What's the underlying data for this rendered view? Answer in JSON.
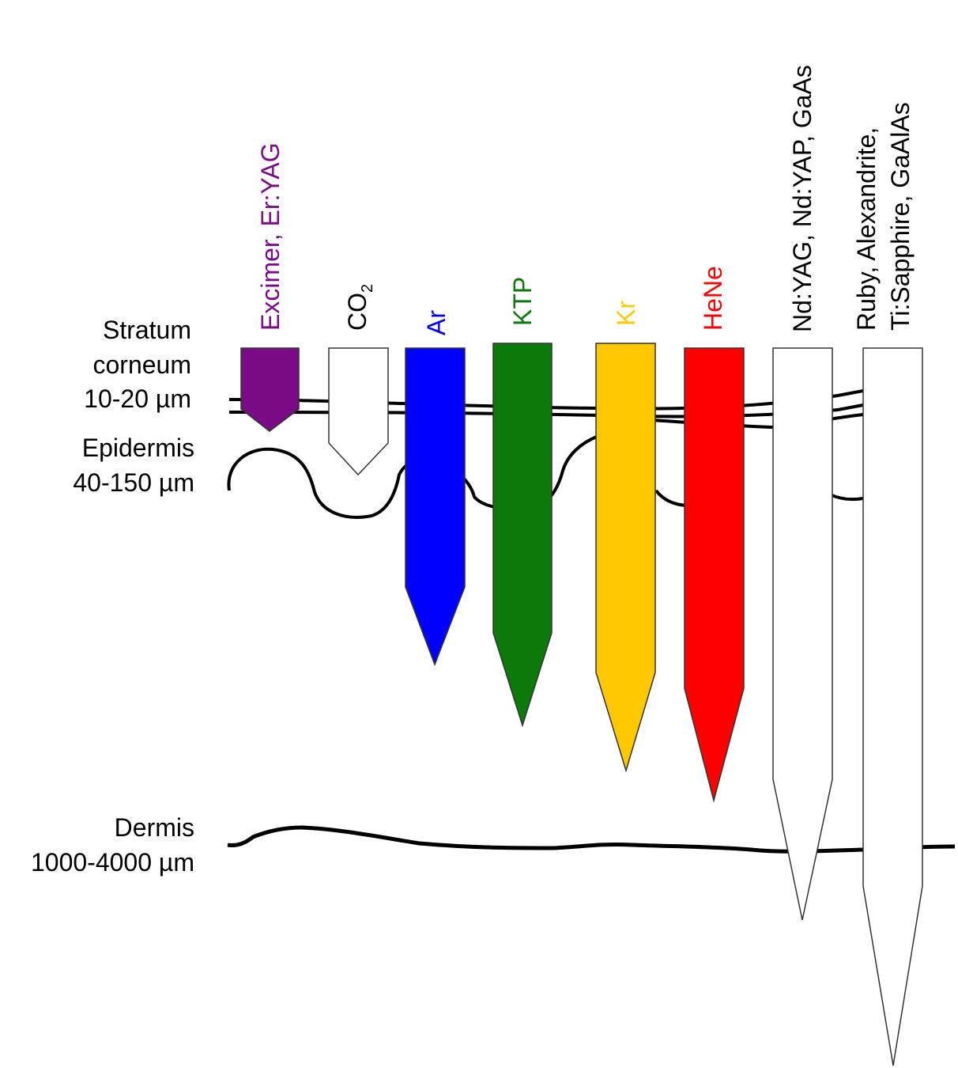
{
  "layers": [
    {
      "id": "stratum",
      "lines": [
        "Stratum",
        "corneum",
        "10-20 µm"
      ]
    },
    {
      "id": "epidermis",
      "lines": [
        "Epidermis",
        "40-150 µm"
      ]
    },
    {
      "id": "dermis",
      "lines": [
        "Dermis",
        "1000-4000 µm"
      ]
    }
  ],
  "lasers": [
    {
      "id": "excimer",
      "label_lines": [
        "Excimer, Er:YAG"
      ],
      "color": "#7B0A86",
      "text_color": "#7B0A86"
    },
    {
      "id": "co2",
      "label_main": "CO",
      "label_sub": "2",
      "color": "#ffffff",
      "text_color": "#000000"
    },
    {
      "id": "ar",
      "label_lines": [
        "Ar"
      ],
      "color": "#0000FF",
      "text_color": "#0000FF"
    },
    {
      "id": "ktp",
      "label_lines": [
        "KTP"
      ],
      "color": "#0B7A0B",
      "text_color": "#0B7A0B"
    },
    {
      "id": "kr",
      "label_lines": [
        "Kr"
      ],
      "color": "#FFC800",
      "text_color": "#FFC800"
    },
    {
      "id": "hene",
      "label_lines": [
        "HeNe"
      ],
      "color": "#FF0000",
      "text_color": "#FF0000"
    },
    {
      "id": "ndyag",
      "label_lines": [
        "Nd:YAG, Nd:YAP,  GaAs"
      ],
      "color": "#ffffff",
      "text_color": "#000000"
    },
    {
      "id": "ruby",
      "label_lines": [
        "Ruby, Alexandrite,",
        "Ti:Sapphire, GaAlAs"
      ],
      "color": "#ffffff",
      "text_color": "#000000"
    }
  ]
}
